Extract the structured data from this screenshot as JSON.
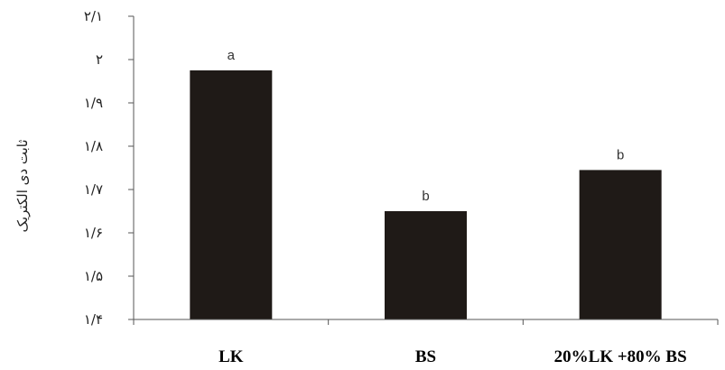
{
  "chart_data": {
    "type": "bar",
    "title": "",
    "xlabel": "",
    "ylabel": "ثابت دی الکتریک",
    "categories": [
      "LK",
      "BS",
      "20%LK +80% BS"
    ],
    "values": [
      1.975,
      1.65,
      1.745
    ],
    "significance_letters": [
      "a",
      "b",
      "b"
    ],
    "ylim": [
      1.4,
      2.1
    ],
    "yticks": [
      1.4,
      1.5,
      1.6,
      1.7,
      1.8,
      1.9,
      2.0,
      2.1
    ],
    "ytick_labels": [
      "۱/۴",
      "۱/۵",
      "۱/۶",
      "۱/۷",
      "۱/۸",
      "۱/۹",
      "۲",
      "۲/۱"
    ],
    "grid": false,
    "legend": false,
    "colors": {
      "bar": "#1f1a17",
      "axis": "#555555"
    }
  }
}
